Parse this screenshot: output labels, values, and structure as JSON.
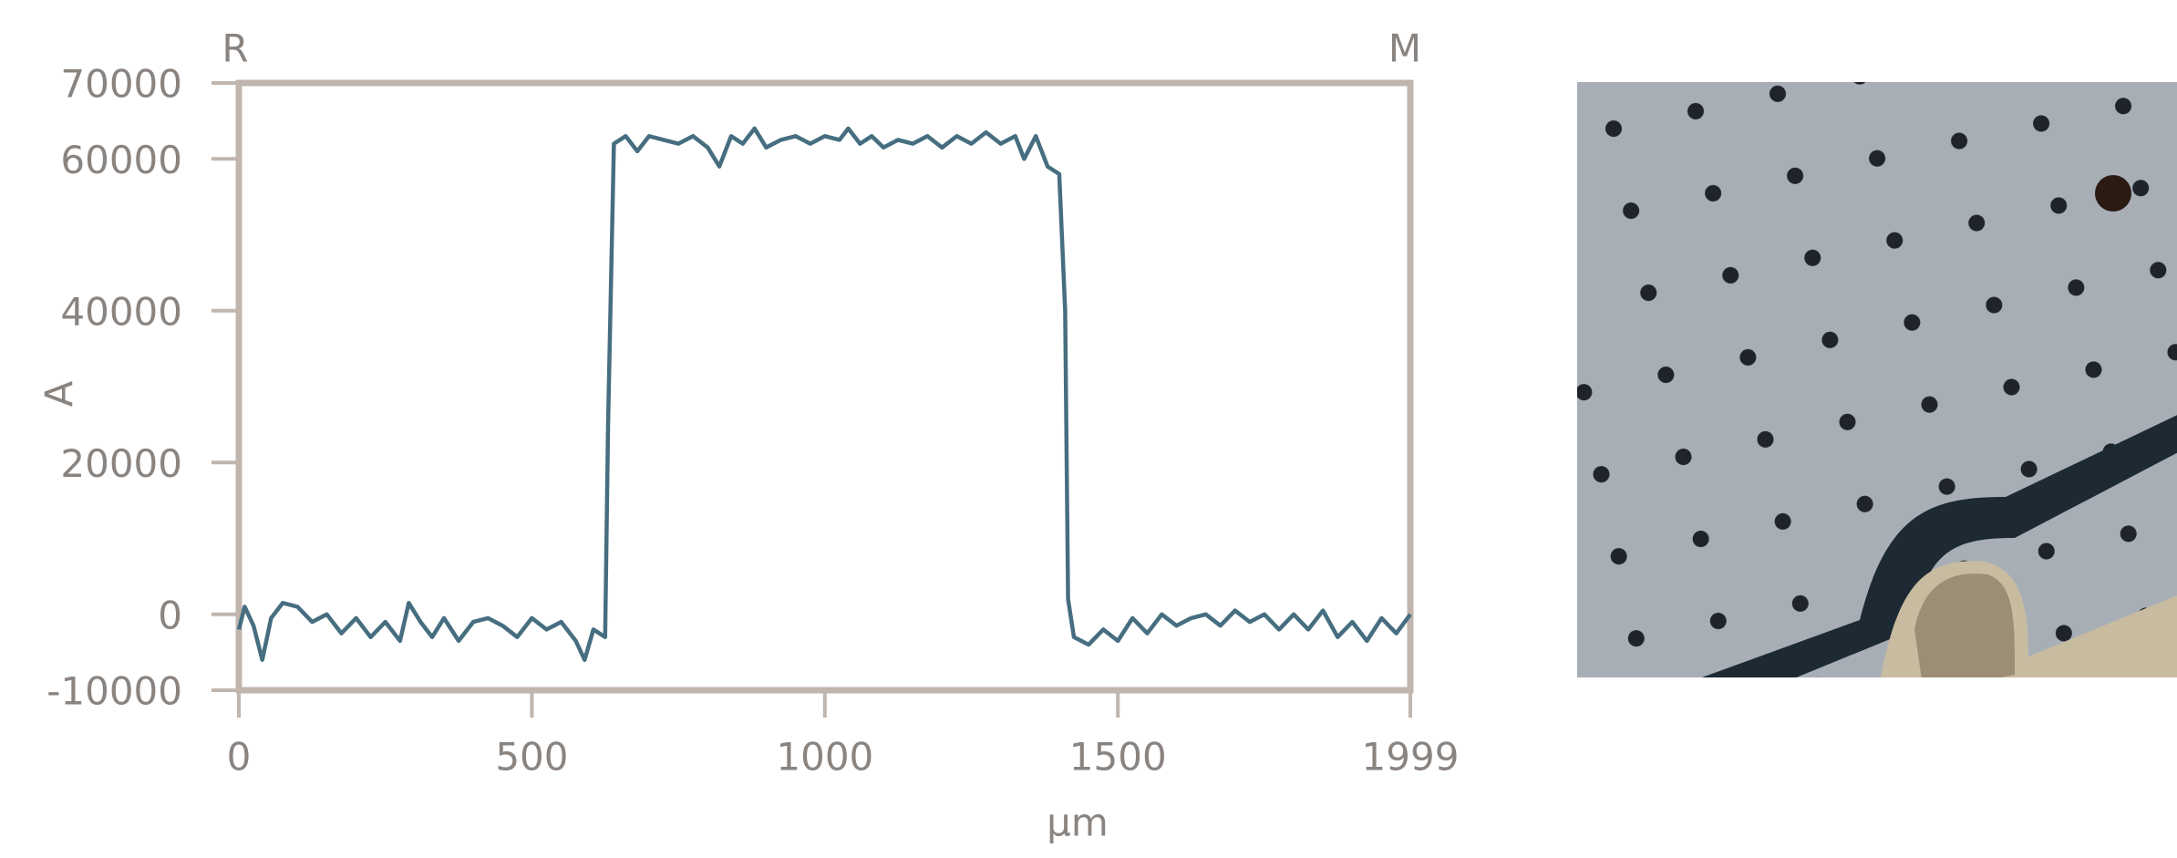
{
  "chart_data": {
    "type": "line",
    "annotations": [
      "R",
      "M"
    ],
    "x_label": "μm",
    "y_label": "A",
    "x": [
      0,
      10,
      25,
      40,
      55,
      75,
      100,
      125,
      150,
      175,
      200,
      225,
      250,
      275,
      290,
      310,
      330,
      350,
      375,
      400,
      425,
      450,
      475,
      500,
      525,
      550,
      575,
      590,
      605,
      625,
      630,
      640,
      660,
      680,
      700,
      725,
      750,
      775,
      800,
      820,
      840,
      860,
      880,
      900,
      925,
      950,
      975,
      1000,
      1025,
      1040,
      1060,
      1080,
      1100,
      1125,
      1150,
      1175,
      1200,
      1225,
      1250,
      1275,
      1300,
      1325,
      1340,
      1360,
      1380,
      1400,
      1410,
      1415,
      1425,
      1450,
      1475,
      1500,
      1525,
      1550,
      1575,
      1600,
      1625,
      1650,
      1675,
      1700,
      1725,
      1750,
      1775,
      1800,
      1825,
      1850,
      1875,
      1900,
      1925,
      1950,
      1975,
      1999
    ],
    "series": [
      {
        "name": "A",
        "color": "#466e80",
        "values": [
          -2000,
          1000,
          -1500,
          -6000,
          -500,
          1500,
          1000,
          -1000,
          0,
          -2500,
          -500,
          -3000,
          -1000,
          -3500,
          1500,
          -1000,
          -3000,
          -500,
          -3500,
          -1000,
          -500,
          -1500,
          -3000,
          -500,
          -2000,
          -1000,
          -3500,
          -6000,
          -2000,
          -3000,
          25000,
          62000,
          63000,
          61000,
          63000,
          62500,
          62000,
          63000,
          61500,
          59000,
          63000,
          62000,
          64000,
          61500,
          62500,
          63000,
          62000,
          63000,
          62500,
          64000,
          62000,
          63000,
          61500,
          62500,
          62000,
          63000,
          61500,
          63000,
          62000,
          63500,
          62000,
          63000,
          60000,
          63000,
          59000,
          58000,
          40000,
          2000,
          -3000,
          -4000,
          -2000,
          -3500,
          -500,
          -2500,
          0,
          -1500,
          -500,
          0,
          -1500,
          500,
          -1000,
          0,
          -2000,
          0,
          -2000,
          500,
          -3000,
          -1000,
          -3500,
          -500,
          -2500,
          0
        ]
      }
    ],
    "xlim": [
      0,
      1999
    ],
    "xticks": [
      0,
      500,
      1000,
      1500,
      1999
    ],
    "ylim": [
      -10000,
      70000
    ],
    "yticks": [
      -10000,
      0,
      20000,
      40000,
      60000,
      70000
    ],
    "grid": false
  }
}
